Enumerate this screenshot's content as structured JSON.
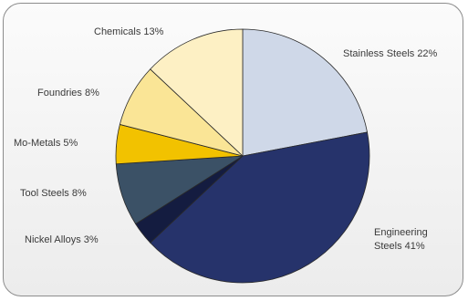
{
  "chart_data": {
    "type": "pie",
    "title": "",
    "start_angle_deg": 0,
    "direction": "clockwise",
    "slices": [
      {
        "label": "Stainless Steels",
        "value": 22,
        "display": [
          "Stainless Steels 22%"
        ],
        "color": "#cfd8e8"
      },
      {
        "label": "Engineering Steels",
        "value": 41,
        "display": [
          "Engineering",
          "Steels 41%"
        ],
        "color": "#26336b"
      },
      {
        "label": "Nickel Alloys",
        "value": 3,
        "display": [
          "Nickel Alloys 3%"
        ],
        "color": "#141c40"
      },
      {
        "label": "Tool Steels",
        "value": 8,
        "display": [
          "Tool Steels 8%"
        ],
        "color": "#3b5166"
      },
      {
        "label": "Mo-Metals",
        "value": 5,
        "display": [
          "Mo-Metals 5%"
        ],
        "color": "#f2c200"
      },
      {
        "label": "Foundries",
        "value": 8,
        "display": [
          "Foundries 8%"
        ],
        "color": "#fae596"
      },
      {
        "label": "Chemicals",
        "value": 13,
        "display": [
          "Chemicals 13%"
        ],
        "color": "#fdf0c4"
      }
    ]
  }
}
